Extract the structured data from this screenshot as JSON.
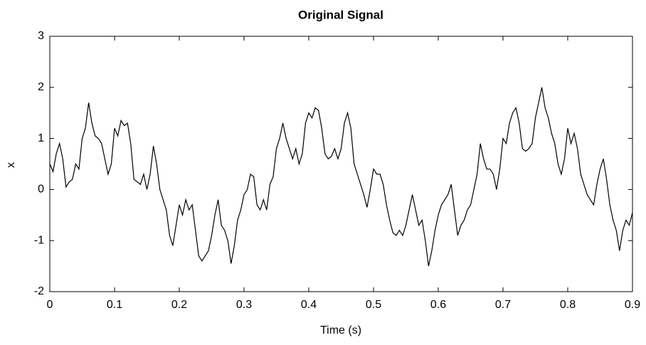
{
  "chart_data": {
    "type": "line",
    "title": "Original Signal",
    "x_label": "Time (s)",
    "y_label": "x",
    "x": [
      0,
      0.005,
      0.01,
      0.015,
      0.02,
      0.025,
      0.03,
      0.035,
      0.04,
      0.045,
      0.05,
      0.055,
      0.06,
      0.065,
      0.07,
      0.075,
      0.08,
      0.085,
      0.09,
      0.095,
      0.1,
      0.105,
      0.11,
      0.115,
      0.12,
      0.125,
      0.13,
      0.135,
      0.14,
      0.145,
      0.15,
      0.155,
      0.16,
      0.165,
      0.17,
      0.175,
      0.18,
      0.185,
      0.19,
      0.195,
      0.2,
      0.205,
      0.21,
      0.215,
      0.22,
      0.225,
      0.23,
      0.235,
      0.24,
      0.245,
      0.25,
      0.255,
      0.26,
      0.265,
      0.27,
      0.275,
      0.28,
      0.285,
      0.29,
      0.295,
      0.3,
      0.305,
      0.31,
      0.315,
      0.32,
      0.325,
      0.33,
      0.335,
      0.34,
      0.345,
      0.35,
      0.355,
      0.36,
      0.365,
      0.37,
      0.375,
      0.38,
      0.385,
      0.39,
      0.395,
      0.4,
      0.405,
      0.41,
      0.415,
      0.42,
      0.425,
      0.43,
      0.435,
      0.44,
      0.445,
      0.45,
      0.455,
      0.46,
      0.465,
      0.47,
      0.475,
      0.48,
      0.485,
      0.49,
      0.495,
      0.5,
      0.505,
      0.51,
      0.515,
      0.52,
      0.525,
      0.53,
      0.535,
      0.54,
      0.545,
      0.55,
      0.555,
      0.56,
      0.565,
      0.57,
      0.575,
      0.58,
      0.585,
      0.59,
      0.595,
      0.6,
      0.605,
      0.61,
      0.615,
      0.62,
      0.625,
      0.63,
      0.635,
      0.64,
      0.645,
      0.65,
      0.655,
      0.66,
      0.665,
      0.67,
      0.675,
      0.68,
      0.685,
      0.69,
      0.695,
      0.7,
      0.705,
      0.71,
      0.715,
      0.72,
      0.725,
      0.73,
      0.735,
      0.74,
      0.745,
      0.75,
      0.755,
      0.76,
      0.765,
      0.77,
      0.775,
      0.78,
      0.785,
      0.79,
      0.795,
      0.8,
      0.805,
      0.81,
      0.815,
      0.82,
      0.825,
      0.83,
      0.835,
      0.84,
      0.845,
      0.85,
      0.855,
      0.86,
      0.865,
      0.87,
      0.875,
      0.88,
      0.885,
      0.89,
      0.895,
      0.9
    ],
    "series": [
      {
        "color": "#000000",
        "values": [
          0.5,
          0.35,
          0.7,
          0.9,
          0.6,
          0.05,
          0.15,
          0.2,
          0.5,
          0.4,
          1.0,
          1.2,
          1.7,
          1.3,
          1.05,
          1.0,
          0.9,
          0.6,
          0.3,
          0.5,
          1.2,
          1.05,
          1.35,
          1.25,
          1.3,
          0.9,
          0.2,
          0.15,
          0.1,
          0.3,
          0.0,
          0.3,
          0.85,
          0.5,
          0.0,
          -0.2,
          -0.4,
          -0.9,
          -1.1,
          -0.7,
          -0.3,
          -0.5,
          -0.2,
          -0.4,
          -0.3,
          -0.8,
          -1.3,
          -1.4,
          -1.3,
          -1.2,
          -0.9,
          -0.5,
          -0.2,
          -0.7,
          -0.8,
          -1.0,
          -1.45,
          -1.1,
          -0.6,
          -0.4,
          -0.1,
          0.0,
          0.3,
          0.25,
          -0.3,
          -0.4,
          -0.2,
          -0.4,
          0.1,
          0.25,
          0.8,
          1.0,
          1.3,
          1.0,
          0.8,
          0.6,
          0.8,
          0.5,
          0.7,
          1.3,
          1.5,
          1.4,
          1.6,
          1.55,
          1.2,
          0.7,
          0.6,
          0.65,
          0.8,
          0.6,
          0.8,
          1.3,
          1.5,
          1.2,
          0.5,
          0.3,
          0.1,
          -0.1,
          -0.35,
          0.0,
          0.4,
          0.3,
          0.3,
          0.1,
          -0.3,
          -0.6,
          -0.85,
          -0.9,
          -0.8,
          -0.9,
          -0.7,
          -0.4,
          -0.1,
          -0.4,
          -0.7,
          -0.6,
          -1.0,
          -1.5,
          -1.2,
          -0.8,
          -0.5,
          -0.3,
          -0.2,
          -0.1,
          0.1,
          -0.4,
          -0.9,
          -0.7,
          -0.6,
          -0.4,
          -0.3,
          0.0,
          0.3,
          0.9,
          0.6,
          0.4,
          0.4,
          0.3,
          0.0,
          0.4,
          1.0,
          0.9,
          1.3,
          1.5,
          1.6,
          1.3,
          0.8,
          0.75,
          0.8,
          0.9,
          1.4,
          1.7,
          2.0,
          1.6,
          1.4,
          1.1,
          0.9,
          0.5,
          0.3,
          0.6,
          1.2,
          0.9,
          1.1,
          0.8,
          0.3,
          0.1,
          -0.1,
          -0.2,
          -0.3,
          0.1,
          0.4,
          0.6,
          0.2,
          -0.3,
          -0.6,
          -0.8,
          -1.2,
          -0.8,
          -0.6,
          -0.7,
          -0.45
        ]
      }
    ],
    "xlim": [
      0,
      0.9
    ],
    "xticks": [
      0,
      0.1,
      0.2,
      0.3,
      0.4,
      0.5,
      0.6,
      0.7,
      0.8,
      0.9
    ],
    "ylim": [
      -2,
      3
    ],
    "yticks": [
      -2,
      -1,
      0,
      1,
      2,
      3
    ],
    "grid": false
  }
}
